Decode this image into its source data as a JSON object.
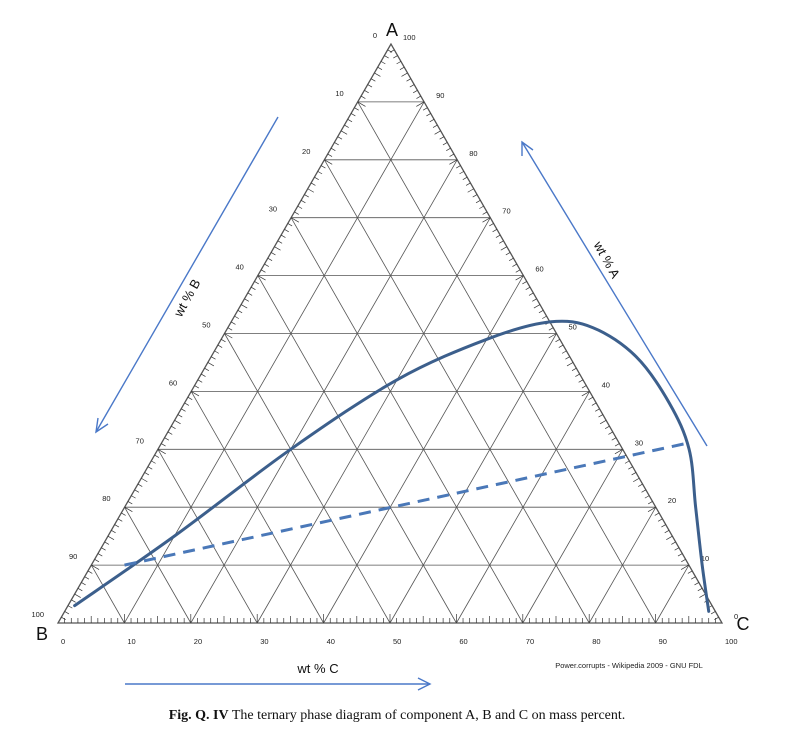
{
  "diagram": {
    "vertex_labels": {
      "top": "A",
      "left": "B",
      "right": "C"
    },
    "axis_labels": {
      "b": "wt % B",
      "a": "wt % A",
      "c": "wt % C"
    },
    "tick_values": [
      "0",
      "10",
      "20",
      "30",
      "40",
      "50",
      "60",
      "70",
      "80",
      "90",
      "100"
    ],
    "credit": "Power.corrupts - Wikipedia 2009 - GNU FDL",
    "colors": {
      "grid": "#555555",
      "curve": "#3c5f8c",
      "tie_line": "#4a78b8",
      "arrow": "#4a78c8",
      "ticks": "#333333"
    }
  },
  "phase_boundary": [
    {
      "A": 3,
      "C": 1
    },
    {
      "A": 15,
      "C": 10
    },
    {
      "A": 30,
      "C": 20
    },
    {
      "A": 42,
      "C": 30
    },
    {
      "A": 49,
      "C": 40
    },
    {
      "A": 52,
      "C": 48
    },
    {
      "A": 51,
      "C": 55
    },
    {
      "A": 46,
      "C": 64
    },
    {
      "A": 38,
      "C": 73
    },
    {
      "A": 30,
      "C": 80
    },
    {
      "A": 20,
      "C": 86
    },
    {
      "A": 10,
      "C": 92
    },
    {
      "A": 2,
      "C": 97
    }
  ],
  "tie_line": {
    "from": {
      "A": 10,
      "C": 5
    },
    "to": {
      "A": 31,
      "C": 79
    }
  },
  "caption": {
    "label": "Fig. Q. IV",
    "text": "The ternary phase diagram of component A, B and C on mass percent."
  }
}
